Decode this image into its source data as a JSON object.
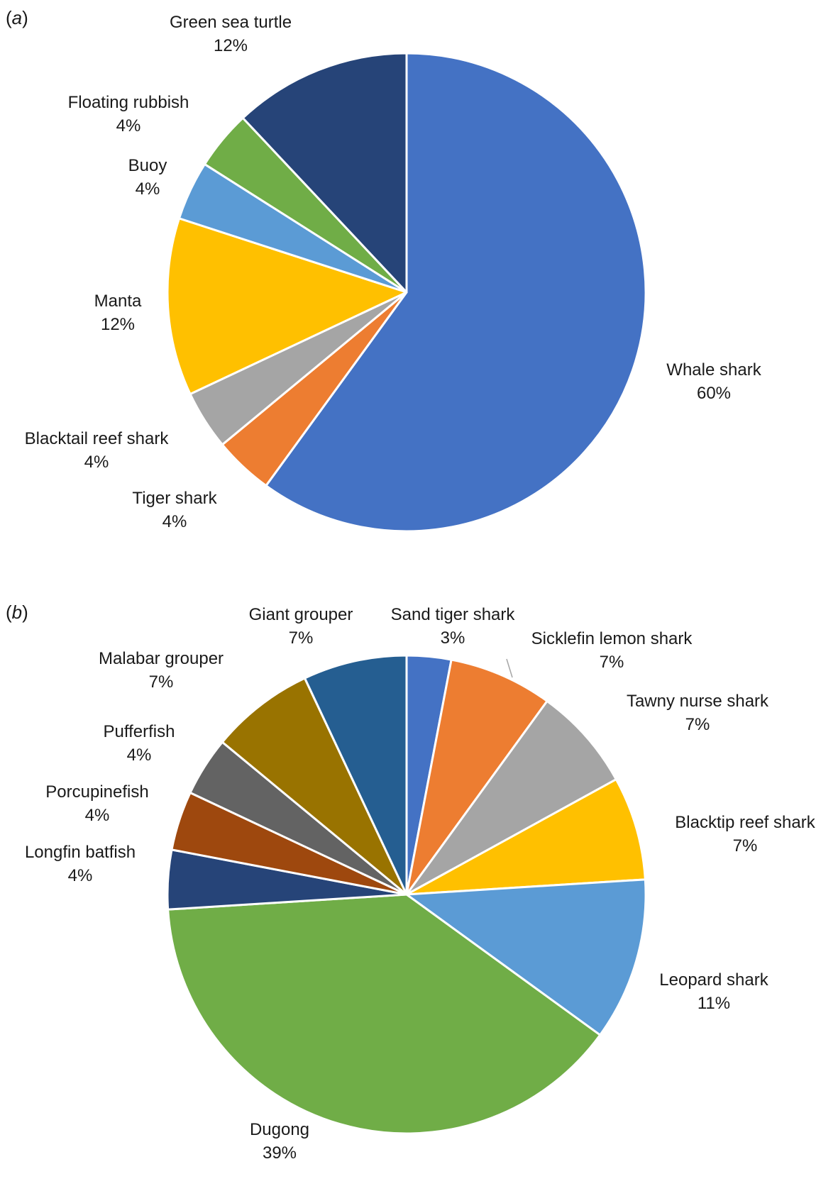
{
  "panel_labels": {
    "a": {
      "open": "(",
      "letter": "a",
      "close": ")"
    },
    "b": {
      "open": "(",
      "letter": "b",
      "close": ")"
    }
  },
  "chart_data": [
    {
      "type": "pie",
      "panel": "a",
      "start_angle_deg": 0,
      "direction": "clockwise",
      "slices": [
        {
          "label": "Whale shark",
          "value": 60,
          "display": "60%",
          "color": "#4472C4"
        },
        {
          "label": "Tiger shark",
          "value": 4,
          "display": "4%",
          "color": "#ED7D31"
        },
        {
          "label": "Blacktail reef shark",
          "value": 4,
          "display": "4%",
          "color": "#A5A5A5"
        },
        {
          "label": "Manta",
          "value": 12,
          "display": "12%",
          "color": "#FFC000"
        },
        {
          "label": "Buoy",
          "value": 4,
          "display": "4%",
          "color": "#5B9BD5"
        },
        {
          "label": "Floating rubbish",
          "value": 4,
          "display": "4%",
          "color": "#70AD47"
        },
        {
          "label": "Green sea turtle",
          "value": 12,
          "display": "12%",
          "color": "#264478"
        }
      ]
    },
    {
      "type": "pie",
      "panel": "b",
      "start_angle_deg": 0,
      "direction": "clockwise",
      "slices": [
        {
          "label": "Sand tiger shark",
          "value": 3,
          "display": "3%",
          "color": "#4472C4"
        },
        {
          "label": "Sicklefin lemon shark",
          "value": 7,
          "display": "7%",
          "color": "#ED7D31"
        },
        {
          "label": "Tawny nurse shark",
          "value": 7,
          "display": "7%",
          "color": "#A5A5A5"
        },
        {
          "label": "Blacktip reef shark",
          "value": 7,
          "display": "7%",
          "color": "#FFC000"
        },
        {
          "label": "Leopard shark",
          "value": 11,
          "display": "11%",
          "color": "#5B9BD5"
        },
        {
          "label": "Dugong",
          "value": 39,
          "display": "39%",
          "color": "#70AD47"
        },
        {
          "label": "Longfin batfish",
          "value": 4,
          "display": "4%",
          "color": "#264478"
        },
        {
          "label": "Porcupinefish",
          "value": 4,
          "display": "4%",
          "color": "#9E480E"
        },
        {
          "label": "Pufferfish",
          "value": 4,
          "display": "4%",
          "color": "#636363"
        },
        {
          "label": "Malabar grouper",
          "value": 7,
          "display": "7%",
          "color": "#997300"
        },
        {
          "label": "Giant grouper",
          "value": 7,
          "display": "7%",
          "color": "#255E91"
        }
      ]
    }
  ]
}
